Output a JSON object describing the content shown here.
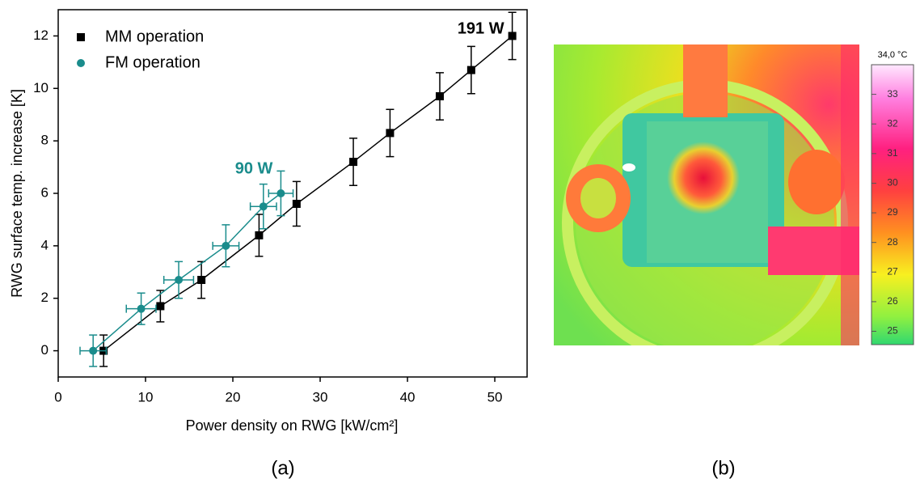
{
  "chart_data": {
    "type": "scatter",
    "xlabel": "Power density on RWG [kW/cm²]",
    "ylabel": "RWG surface temp. increase [K]",
    "xlim": [
      0,
      53.7
    ],
    "ylim": [
      -1,
      13
    ],
    "xticks": [
      0,
      10,
      20,
      30,
      40,
      50
    ],
    "yticks": [
      0,
      2,
      4,
      6,
      8,
      10,
      12
    ],
    "legend": "upper left",
    "series": [
      {
        "name": "MM operation",
        "color": "#000000",
        "marker": "square",
        "end_label": "191 W",
        "x": [
          5.2,
          11.7,
          16.4,
          23.0,
          27.3,
          33.8,
          38.0,
          43.7,
          47.3,
          52.0
        ],
        "values": [
          0,
          1.7,
          2.7,
          4.4,
          5.6,
          7.2,
          8.3,
          9.7,
          10.7,
          12.0
        ],
        "yerr": [
          0.6,
          0.6,
          0.7,
          0.8,
          0.85,
          0.9,
          0.9,
          0.9,
          0.9,
          0.9
        ]
      },
      {
        "name": "FM operation",
        "color": "#1a8c8c",
        "marker": "circle",
        "end_label": "90 W",
        "x": [
          4.0,
          9.5,
          13.8,
          19.2,
          23.5,
          25.5
        ],
        "values": [
          0,
          1.6,
          2.7,
          4.0,
          5.5,
          6.0
        ],
        "yerr": [
          0.6,
          0.6,
          0.7,
          0.8,
          0.85,
          0.85
        ],
        "xerr": [
          1.5,
          1.7,
          1.7,
          1.5,
          1.5,
          1.4
        ]
      }
    ]
  },
  "image_panel": {
    "colorbar": {
      "title": "34,0 °C",
      "lim": [
        24.55,
        34
      ],
      "ticks": [
        25,
        26,
        27,
        28,
        29,
        30,
        31,
        32,
        33
      ]
    }
  },
  "panel_labels": [
    "(a)",
    "(b)"
  ]
}
